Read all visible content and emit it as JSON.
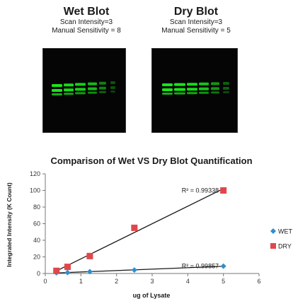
{
  "blots": [
    {
      "title": "Wet Blot",
      "line1": "Scan Intensity=3",
      "line2": "Manual Sensitivity = 8"
    },
    {
      "title": "Dry Blot",
      "line1": "Scan Intensity=3",
      "line2": "Manual Sensitivity = 5"
    }
  ],
  "colors": {
    "wet": "#2e8fd0",
    "dry": "#e0474c",
    "band": "#19e619",
    "fit": "#1a1a1a"
  },
  "chart_data": {
    "type": "scatter",
    "title": "Comparison of Wet VS Dry Blot Quantification",
    "xlabel": "ug of Lysate",
    "ylabel": "Integrated Intensity (K Count)",
    "xlim": [
      0,
      6
    ],
    "ylim": [
      0,
      120
    ],
    "xticks": [
      "0",
      "1",
      "2",
      "3",
      "4",
      "5",
      "6"
    ],
    "yticks": [
      "0",
      "20",
      "40",
      "60",
      "80",
      "100",
      "120"
    ],
    "grid": false,
    "legend": "right",
    "series": [
      {
        "name": "WET",
        "marker": "diamond",
        "x": [
          0.3125,
          0.625,
          1.25,
          2.5,
          5
        ],
        "y": [
          0.8,
          1.2,
          2.2,
          4.2,
          8.8
        ]
      },
      {
        "name": "DRY",
        "marker": "square",
        "x": [
          0.3125,
          0.625,
          1.25,
          2.5,
          5
        ],
        "y": [
          3.2,
          8.0,
          21,
          55,
          100
        ]
      }
    ],
    "annotations": [
      {
        "text": "R² = 0.99338",
        "series": "DRY"
      },
      {
        "text": "R² = 0.99857",
        "series": "WET"
      }
    ]
  }
}
